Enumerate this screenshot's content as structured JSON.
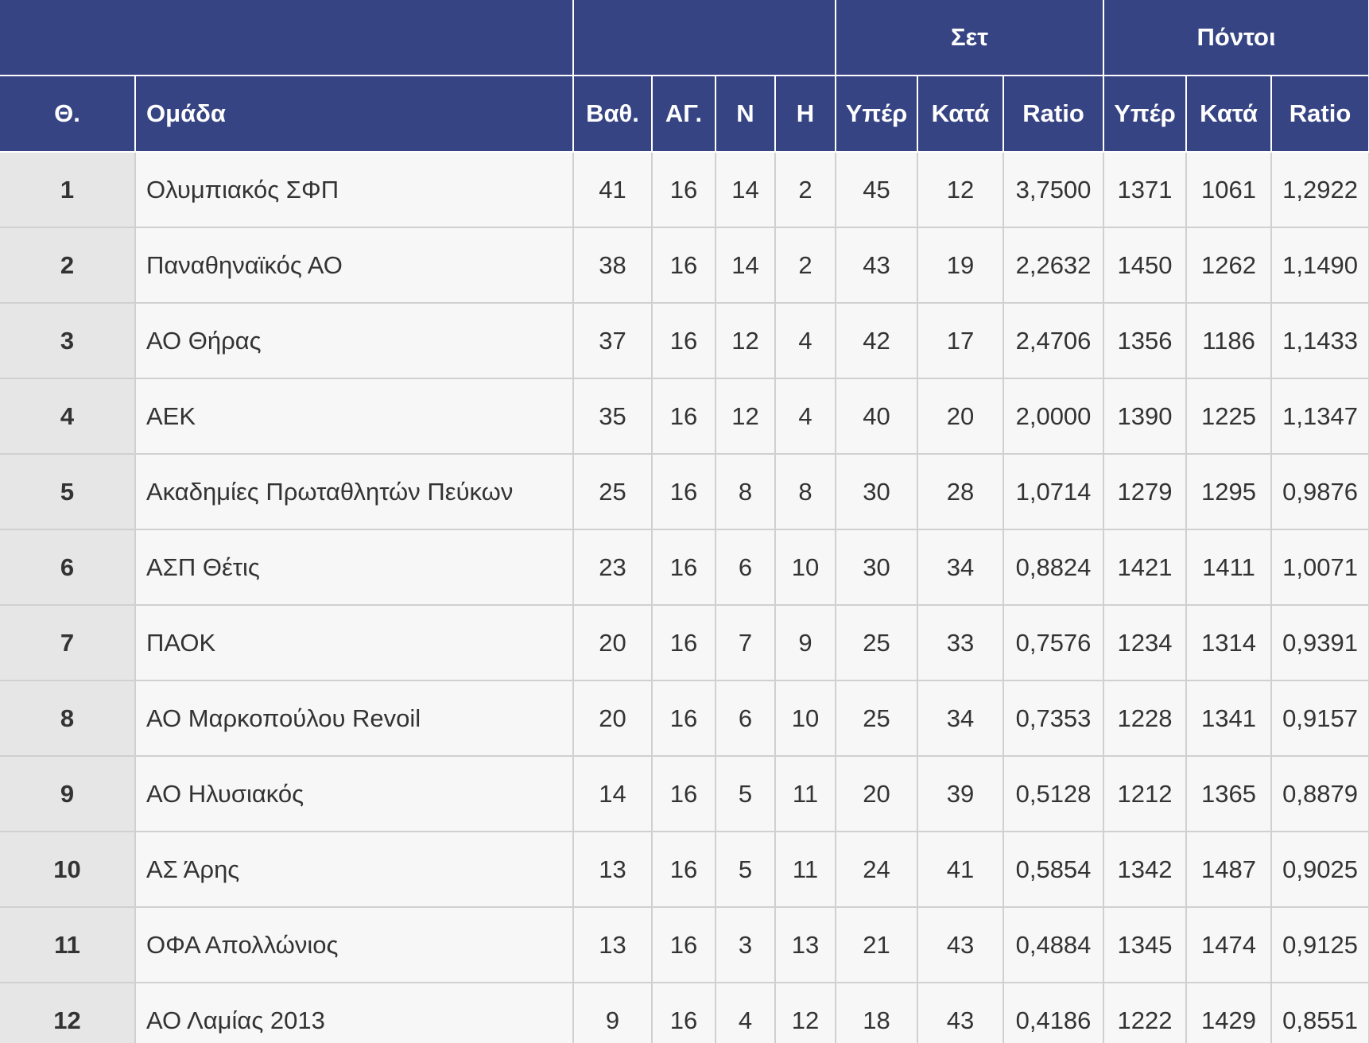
{
  "table": {
    "group_headers": [
      "Σετ",
      "Πόντοι"
    ],
    "columns": [
      "Θ.",
      "Ομάδα",
      "Βαθ.",
      "ΑΓ.",
      "Ν",
      "Η",
      "Υπέρ",
      "Κατά",
      "Ratio",
      "Υπέρ",
      "Κατά",
      "Ratio"
    ],
    "rows": [
      [
        "1",
        "Ολυμπιακός ΣΦΠ",
        "41",
        "16",
        "14",
        "2",
        "45",
        "12",
        "3,7500",
        "1371",
        "1061",
        "1,2922"
      ],
      [
        "2",
        "Παναθηναϊκός ΑΟ",
        "38",
        "16",
        "14",
        "2",
        "43",
        "19",
        "2,2632",
        "1450",
        "1262",
        "1,1490"
      ],
      [
        "3",
        "ΑΟ Θήρας",
        "37",
        "16",
        "12",
        "4",
        "42",
        "17",
        "2,4706",
        "1356",
        "1186",
        "1,1433"
      ],
      [
        "4",
        "ΑΕΚ",
        "35",
        "16",
        "12",
        "4",
        "40",
        "20",
        "2,0000",
        "1390",
        "1225",
        "1,1347"
      ],
      [
        "5",
        "Ακαδημίες Πρωταθλητών Πεύκων",
        "25",
        "16",
        "8",
        "8",
        "30",
        "28",
        "1,0714",
        "1279",
        "1295",
        "0,9876"
      ],
      [
        "6",
        "ΑΣΠ Θέτις",
        "23",
        "16",
        "6",
        "10",
        "30",
        "34",
        "0,8824",
        "1421",
        "1411",
        "1,0071"
      ],
      [
        "7",
        "ΠΑΟΚ",
        "20",
        "16",
        "7",
        "9",
        "25",
        "33",
        "0,7576",
        "1234",
        "1314",
        "0,9391"
      ],
      [
        "8",
        "ΑΟ Μαρκοπούλου Revoil",
        "20",
        "16",
        "6",
        "10",
        "25",
        "34",
        "0,7353",
        "1228",
        "1341",
        "0,9157"
      ],
      [
        "9",
        "ΑΟ Ηλυσιακός",
        "14",
        "16",
        "5",
        "11",
        "20",
        "39",
        "0,5128",
        "1212",
        "1365",
        "0,8879"
      ],
      [
        "10",
        "ΑΣ Άρης",
        "13",
        "16",
        "5",
        "11",
        "24",
        "41",
        "0,5854",
        "1342",
        "1487",
        "0,9025"
      ],
      [
        "11",
        "ΟΦΑ Απολλώνιος",
        "13",
        "16",
        "3",
        "13",
        "21",
        "43",
        "0,4884",
        "1345",
        "1474",
        "0,9125"
      ],
      [
        "12",
        "ΑΟ Λαμίας 2013",
        "9",
        "16",
        "4",
        "12",
        "18",
        "43",
        "0,4186",
        "1222",
        "1429",
        "0,8551"
      ]
    ]
  }
}
